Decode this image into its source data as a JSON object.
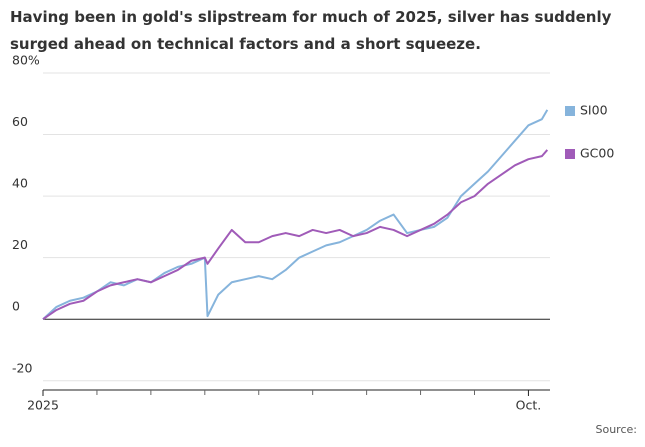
{
  "chart_data": {
    "type": "line",
    "title": "Having been in gold's slipstream for much of 2025, silver has suddenly surged ahead on technical factors and a short squeeze.",
    "source": "Source:",
    "x": [
      0,
      0.25,
      0.5,
      0.75,
      1,
      1.25,
      1.5,
      1.75,
      2,
      2.25,
      2.5,
      2.75,
      3,
      3.05,
      3.25,
      3.5,
      3.75,
      4,
      4.25,
      4.5,
      4.75,
      5,
      5.25,
      5.5,
      5.75,
      6,
      6.25,
      6.5,
      6.75,
      7,
      7.25,
      7.5,
      7.75,
      8,
      8.25,
      8.5,
      8.75,
      9,
      9.25,
      9.35
    ],
    "series": [
      {
        "name": "SI00",
        "color": "#86b4dc",
        "values": [
          0,
          4,
          6,
          7,
          9,
          12,
          11,
          13,
          12,
          15,
          17,
          18,
          20,
          1,
          8,
          12,
          13,
          14,
          13,
          16,
          20,
          22,
          24,
          25,
          27,
          29,
          32,
          34,
          28,
          29,
          30,
          33,
          40,
          44,
          48,
          53,
          58,
          63,
          65,
          68
        ]
      },
      {
        "name": "GC00",
        "color": "#a05bb8",
        "values": [
          0,
          3,
          5,
          6,
          9,
          11,
          12,
          13,
          12,
          14,
          16,
          19,
          20,
          18,
          23,
          29,
          25,
          25,
          27,
          28,
          27,
          29,
          28,
          29,
          27,
          28,
          30,
          29,
          27,
          29,
          31,
          34,
          38,
          40,
          44,
          47,
          50,
          52,
          53,
          55
        ]
      }
    ],
    "xlim": [
      0,
      9.4
    ],
    "xticks": [
      {
        "value": 0,
        "label": "2025"
      },
      {
        "value": 9,
        "label": "Oct."
      }
    ],
    "xminorticks": [
      1,
      2,
      3,
      4,
      5,
      6,
      7,
      8
    ],
    "ylim": [
      -23,
      80
    ],
    "yticks": [
      {
        "value": 80,
        "label": "80%"
      },
      60,
      40,
      20,
      0,
      -20
    ],
    "grid": true,
    "legend": "right"
  }
}
